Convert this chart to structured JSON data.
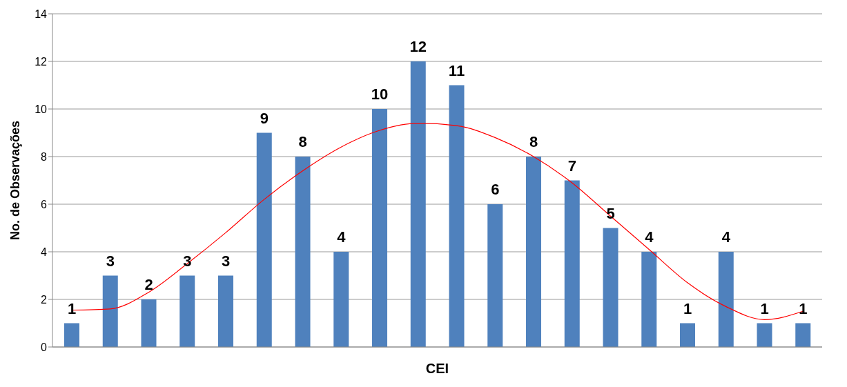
{
  "chart_data": {
    "type": "bar",
    "xlabel": "CEI",
    "ylabel": "No. de Observações",
    "categories": [
      null,
      null,
      null,
      null,
      null,
      null,
      null,
      null,
      null,
      null,
      null,
      null,
      null,
      null,
      null,
      null,
      null,
      null,
      null,
      null
    ],
    "series": [
      {
        "color": "#4f81bd",
        "data_labels": true,
        "values": [
          1,
          3,
          2,
          3,
          3,
          9,
          8,
          4,
          10,
          12,
          11,
          6,
          8,
          7,
          5,
          4,
          1,
          4,
          1,
          1
        ]
      },
      {
        "type": "line",
        "color": "#ff0000",
        "line_style": "solid",
        "values": [
          1.55,
          1.6,
          2.3,
          3.5,
          4.8,
          6.2,
          7.4,
          8.4,
          9.1,
          9.4,
          9.3,
          8.8,
          8.0,
          6.9,
          5.5,
          4.1,
          2.7,
          1.7,
          1.15,
          1.5
        ]
      }
    ],
    "ylim": [
      0,
      14
    ],
    "yticks": [
      0,
      2,
      4,
      6,
      8,
      10,
      12,
      14
    ],
    "grid": "y"
  }
}
